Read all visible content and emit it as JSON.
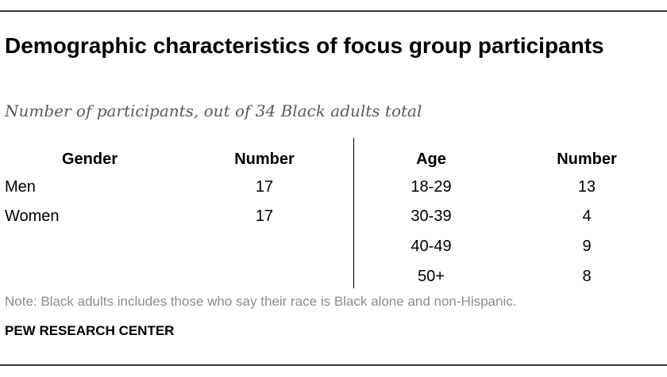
{
  "title": "Demographic characteristics of focus group participants",
  "subtitle": "Number of participants, out of 34 Black adults total",
  "gender_table": {
    "headers": [
      "Gender",
      "Number"
    ],
    "rows": [
      [
        "Men",
        "17"
      ],
      [
        "Women",
        "17"
      ]
    ]
  },
  "age_table": {
    "headers": [
      "Age",
      "Number"
    ],
    "rows": [
      [
        "18-29",
        "13"
      ],
      [
        "30-39",
        "4"
      ],
      [
        "40-49",
        "9"
      ],
      [
        "50+",
        "8"
      ]
    ]
  },
  "note": "Note: Black adults includes those who say their race is Black alone and non-Hispanic.",
  "source": "PEW RESEARCH CENTER"
}
